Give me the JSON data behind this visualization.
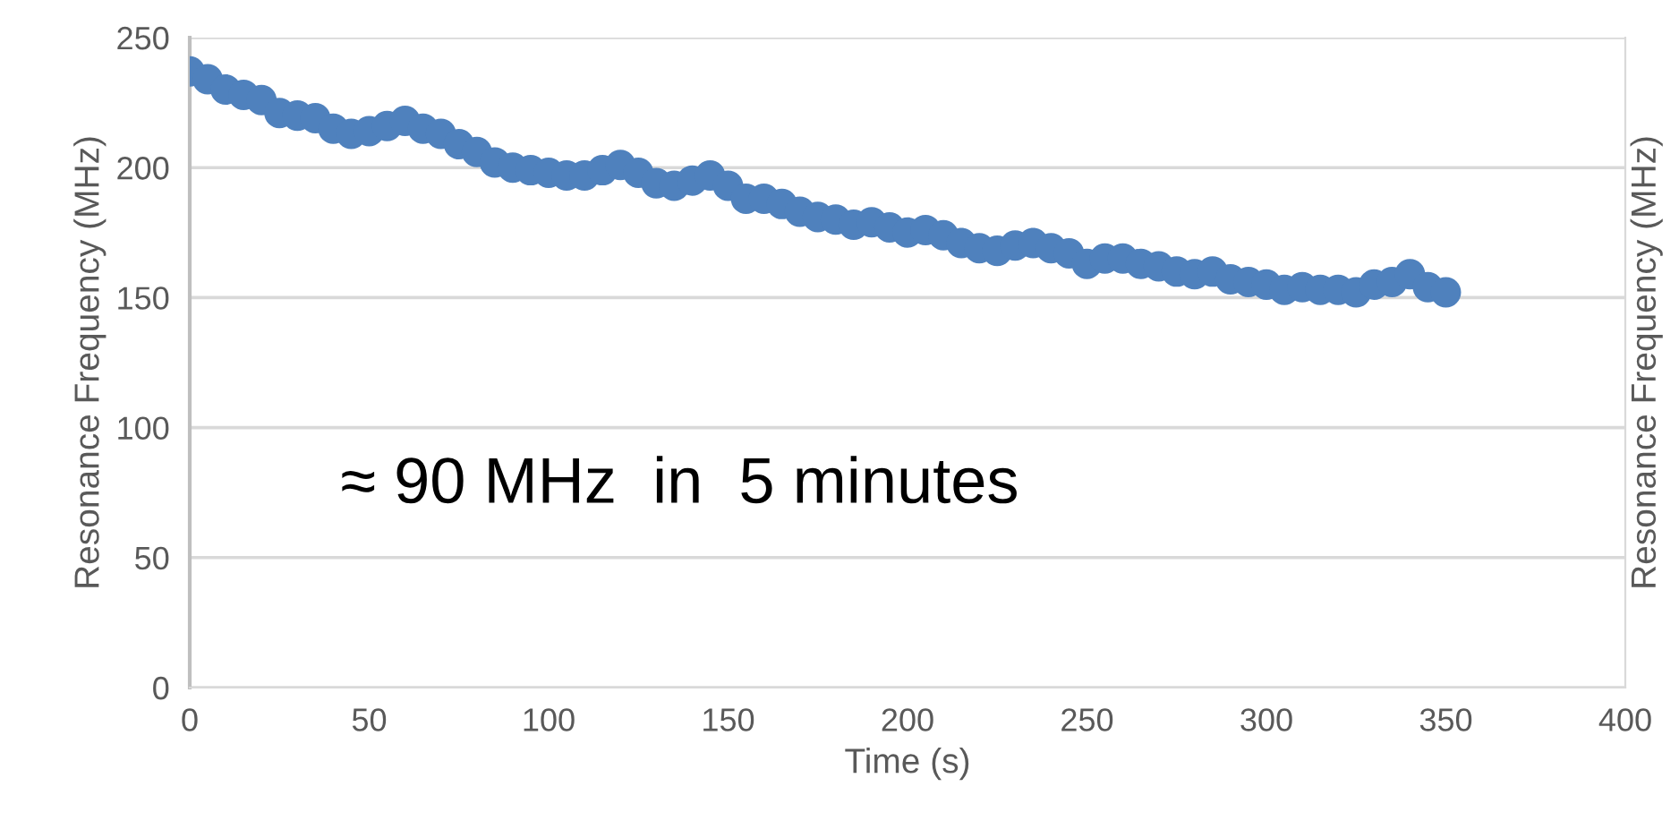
{
  "chart_data": {
    "type": "scatter",
    "xlabel": "Time (s)",
    "ylabel": "Resonance Frequency (MHz)",
    "y2label": "Resonance Frequency (MHz)",
    "annotations": [
      "≈ 90 MHz  in  5 minutes"
    ],
    "x": [
      0,
      5,
      10,
      15,
      20,
      25,
      30,
      35,
      40,
      45,
      50,
      55,
      60,
      65,
      70,
      75,
      80,
      85,
      90,
      95,
      100,
      105,
      110,
      115,
      120,
      125,
      130,
      135,
      140,
      145,
      150,
      155,
      160,
      165,
      170,
      175,
      180,
      185,
      190,
      195,
      200,
      205,
      210,
      215,
      220,
      225,
      230,
      235,
      240,
      245,
      250,
      255,
      260,
      265,
      270,
      275,
      280,
      285,
      290,
      295,
      300,
      305,
      310,
      315,
      320,
      325,
      330,
      335,
      340,
      345,
      350
    ],
    "series": [
      {
        "color": "#4f81bd",
        "values": [
          237,
          234,
          230,
          228,
          226,
          221,
          220,
          219,
          215,
          213,
          214,
          216,
          218,
          215,
          213,
          209,
          206,
          202,
          200,
          199,
          198,
          197,
          197,
          199,
          201,
          198,
          194,
          193,
          195,
          197,
          193,
          188,
          188,
          186,
          183,
          181,
          180,
          178,
          179,
          177,
          175,
          176,
          174,
          171,
          169,
          168,
          170,
          171,
          169,
          167,
          163,
          165,
          165,
          163,
          162,
          160,
          159,
          160,
          157,
          156,
          155,
          153,
          154,
          153,
          153,
          152,
          155,
          156,
          159,
          154,
          152
        ]
      }
    ],
    "xlim": [
      0,
      400
    ],
    "xticks": [
      0,
      50,
      100,
      150,
      200,
      250,
      300,
      350,
      400
    ],
    "ylim": [
      0,
      250
    ],
    "yticks": [
      0,
      50,
      100,
      150,
      200,
      250
    ],
    "grid": "y",
    "marker": "circle",
    "tick_labels": "xy"
  }
}
